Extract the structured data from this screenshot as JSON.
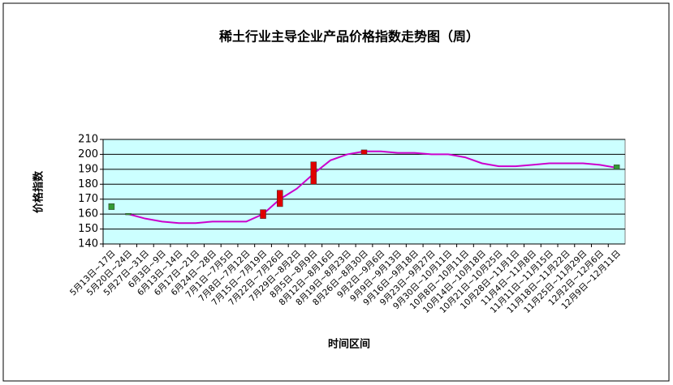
{
  "chart_data": {
    "type": "line",
    "title": "稀土行业主导企业产品价格指数走势图（周）",
    "x_label": "时间区间",
    "y_label": "价格指数",
    "categories": [
      "5月13日~17日",
      "5月20日~24日",
      "5月27日~31日",
      "6月3日~9日",
      "6月13日~14日",
      "6月17日~21日",
      "6月24日~28日",
      "7月1日~7月5日",
      "7月8日~7月12日",
      "7月15日~7月19日",
      "7月22日~7月26日",
      "7月29日~8月2日",
      "8月5日~8月9日",
      "8月12日~8月16日",
      "8月19日~8月23日",
      "8月26日~8月30日",
      "9月2日~9月6日",
      "9月9日~9月13日",
      "9月16日~9月18日",
      "9月23日~9月27日",
      "9月30日~10月11日",
      "10月8日~10月11日",
      "10月14日~10月18日",
      "10月21日~10月25日",
      "10月28日~11月1日",
      "11月4日~11月8日",
      "11月11日~11月15日",
      "11月18日~11月22日",
      "11月25日~11月29日",
      "12月2日~12月6日",
      "12月9日~12月11日"
    ],
    "series": [
      {
        "color": "#cc00cc",
        "values": [
          null,
          160,
          157,
          155,
          154,
          154,
          155,
          155,
          155,
          160,
          170,
          177,
          187,
          196,
          200,
          202,
          202,
          201,
          201,
          200,
          200,
          198,
          194,
          192,
          192,
          193,
          194,
          194,
          194,
          193,
          191
        ]
      }
    ],
    "candles": {
      "up_color": "#e00000",
      "down_color": "#339933",
      "open": [
        167,
        160.5,
        null,
        null,
        null,
        null,
        null,
        null,
        null,
        157,
        165,
        null,
        180,
        null,
        null,
        200,
        null,
        null,
        null,
        null,
        null,
        null,
        null,
        null,
        null,
        null,
        null,
        null,
        null,
        null,
        193
      ],
      "close": [
        163,
        159.5,
        null,
        null,
        null,
        null,
        null,
        null,
        null,
        163,
        176,
        null,
        195,
        null,
        null,
        203,
        null,
        null,
        null,
        null,
        null,
        null,
        null,
        null,
        null,
        null,
        null,
        null,
        null,
        null,
        190
      ]
    },
    "ylim": [
      140,
      210
    ],
    "yticks": [
      140,
      150,
      160,
      170,
      180,
      190,
      200,
      210
    ],
    "grid": true,
    "plot_color": "#ccffff"
  }
}
